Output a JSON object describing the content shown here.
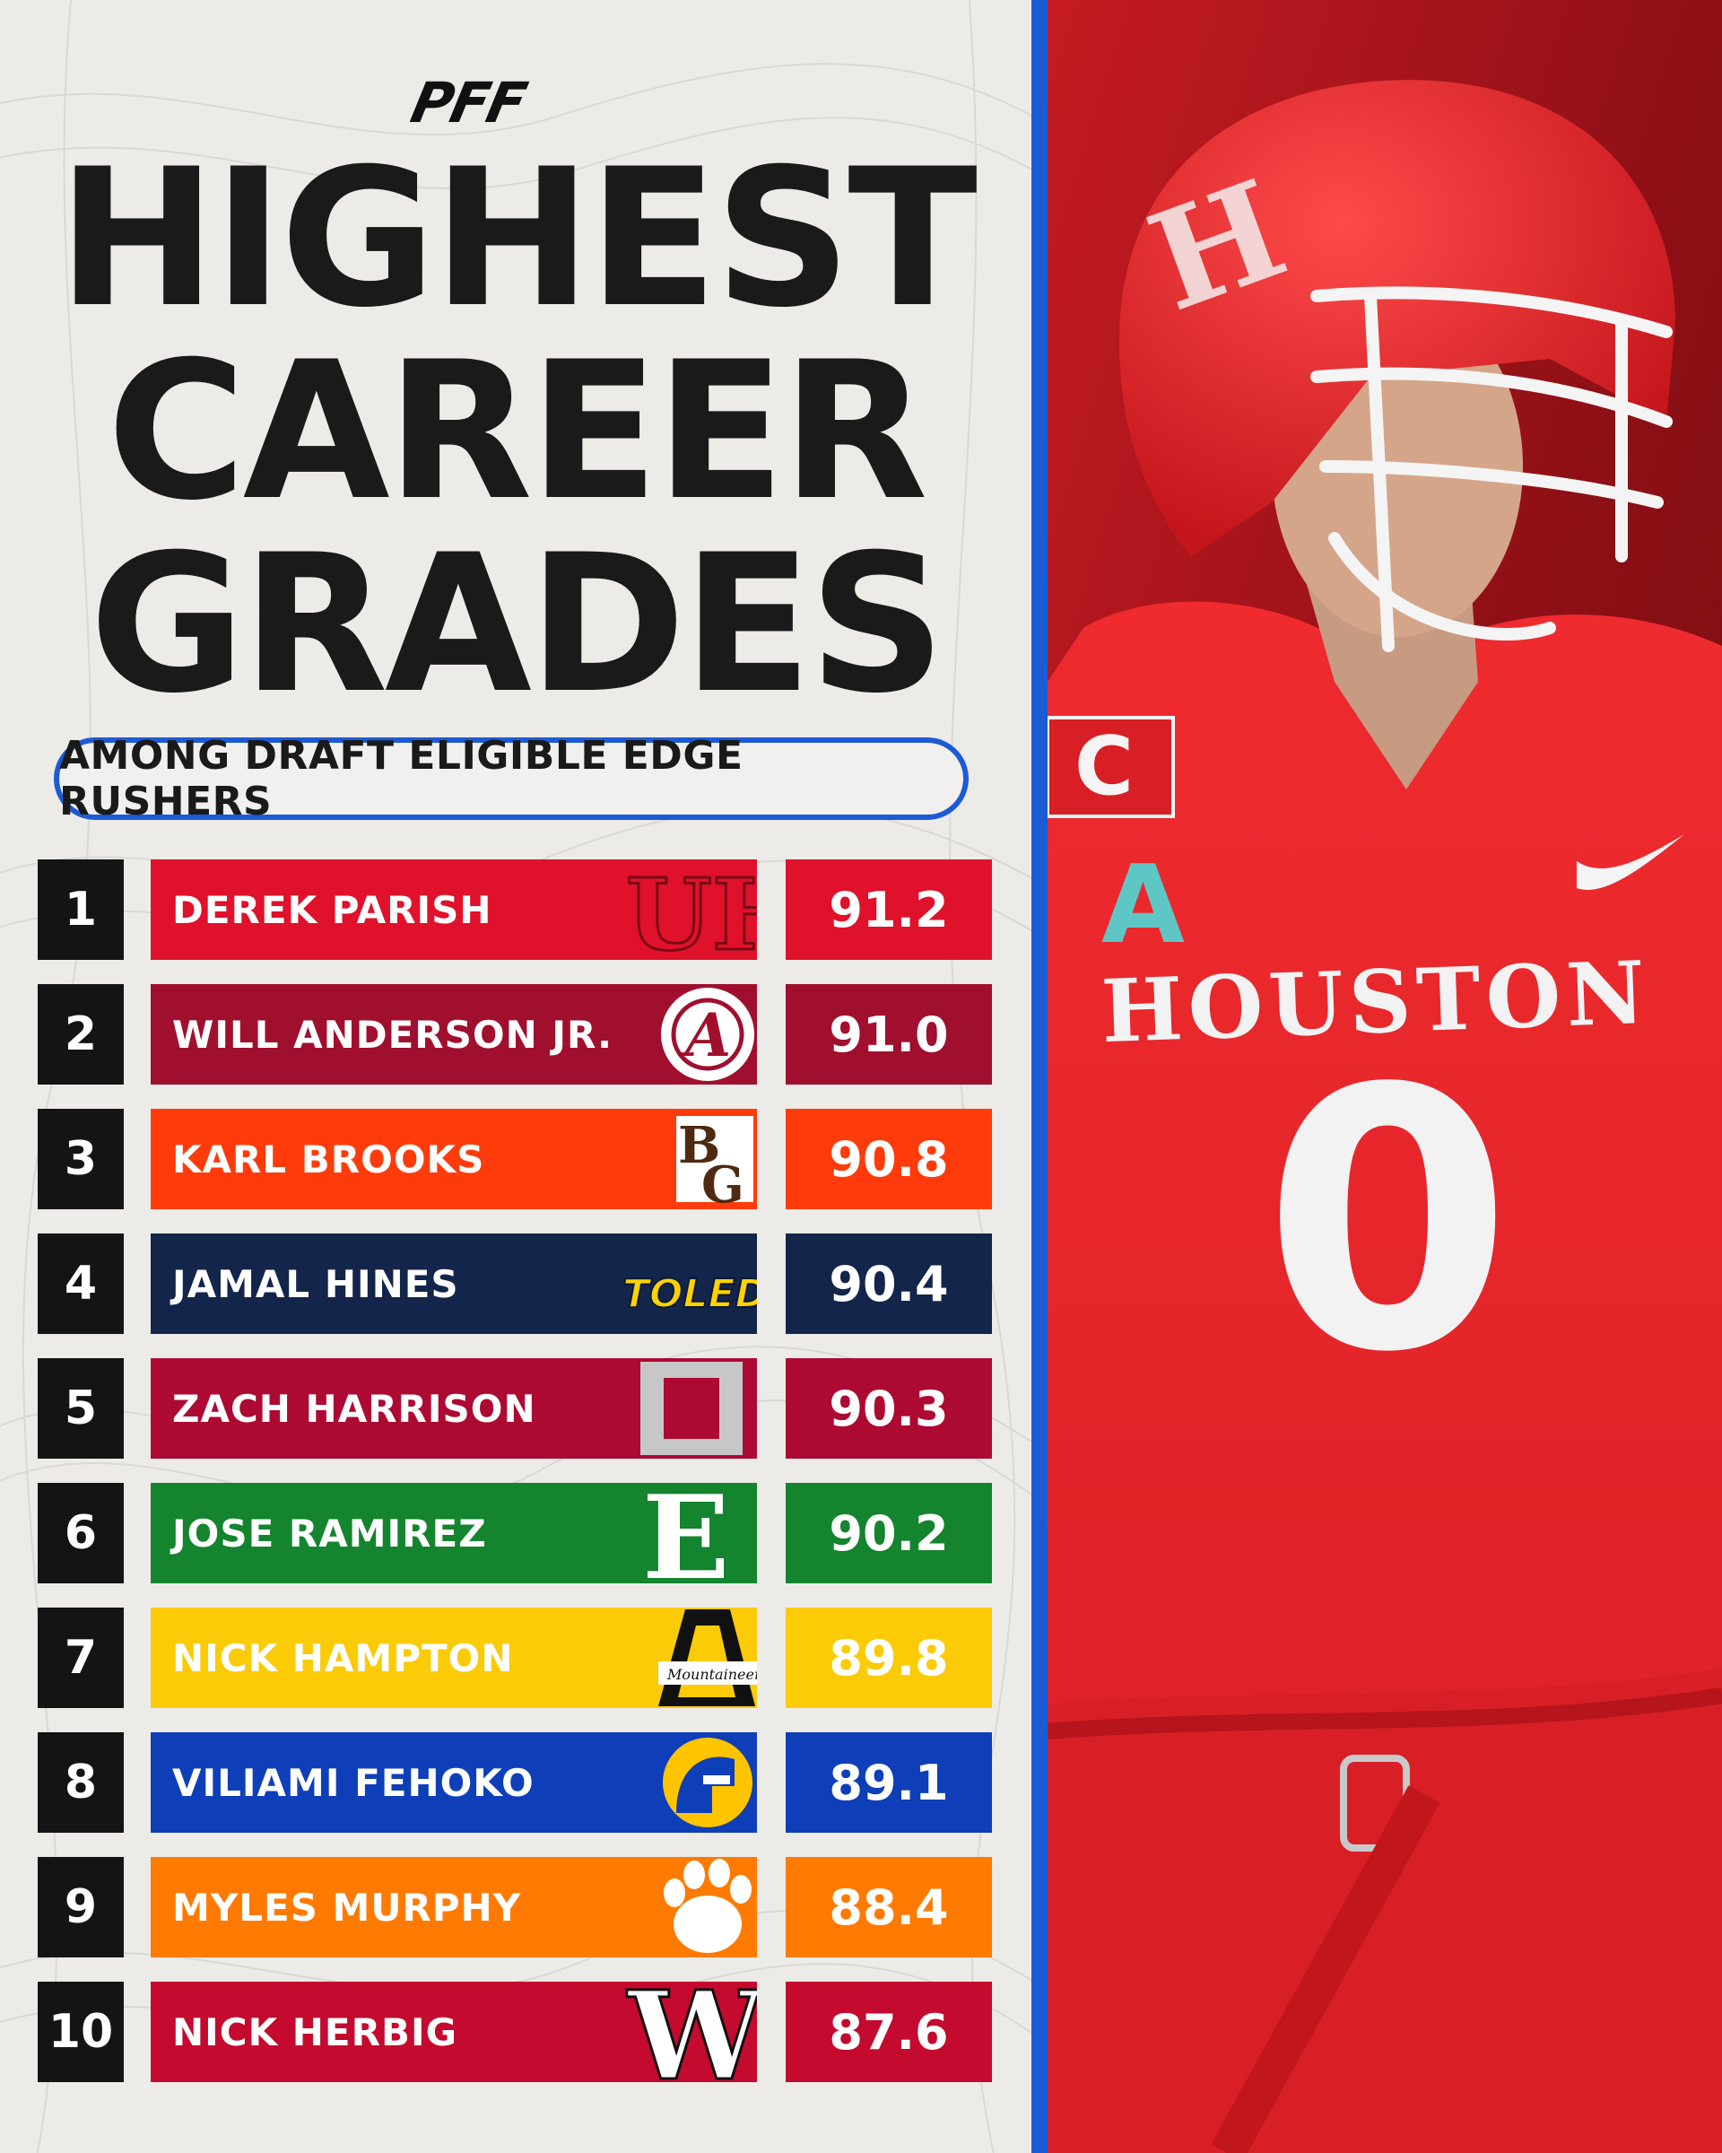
{
  "brand": "PFF",
  "title_lines": [
    "HIGHEST",
    "CAREER",
    "GRADES"
  ],
  "subtitle": "AMONG DRAFT ELIGIBLE EDGE RUSHERS",
  "colors": {
    "divider": "#1d5bd6",
    "rank_bg": "#141414",
    "background": "#ecebe8"
  },
  "rows": [
    {
      "rank": "1",
      "name": "DEREK PARISH",
      "grade": "91.2",
      "color": "#e0112b",
      "school_icon": "houston-uh-logo",
      "school_mark": "UH"
    },
    {
      "rank": "2",
      "name": "WILL ANDERSON JR.",
      "grade": "91.0",
      "color": "#a0102e",
      "school_icon": "alabama-crimson-tide-logo",
      "school_mark": "A"
    },
    {
      "rank": "3",
      "name": "KARL BROOKS",
      "grade": "90.8",
      "color": "#ff3b0b",
      "school_icon": "bowling-green-logo",
      "school_mark": "BG"
    },
    {
      "rank": "4",
      "name": "JAMAL HINES",
      "grade": "90.4",
      "color": "#13254a",
      "school_icon": "toledo-logo",
      "school_mark": "TOLEDO"
    },
    {
      "rank": "5",
      "name": "ZACH HARRISON",
      "grade": "90.3",
      "color": "#ad0a33",
      "school_icon": "ohio-state-logo",
      "school_mark": "O"
    },
    {
      "rank": "6",
      "name": "JOSE RAMIREZ",
      "grade": "90.2",
      "color": "#14842f",
      "school_icon": "eastern-michigan-logo",
      "school_mark": "E"
    },
    {
      "rank": "7",
      "name": "NICK HAMPTON",
      "grade": "89.8",
      "color": "#fbcb08",
      "school_icon": "appalachian-state-logo",
      "school_mark": "A"
    },
    {
      "rank": "8",
      "name": "VILIAMI FEHOKO",
      "grade": "89.1",
      "color": "#0f3fb8",
      "school_icon": "san-jose-state-spartan-logo",
      "school_mark": ""
    },
    {
      "rank": "9",
      "name": "MYLES MURPHY",
      "grade": "88.4",
      "color": "#ff7a00",
      "school_icon": "clemson-paw-logo",
      "school_mark": ""
    },
    {
      "rank": "10",
      "name": "NICK HERBIG",
      "grade": "87.6",
      "color": "#c40a2e",
      "school_icon": "wisconsin-w-logo",
      "school_mark": "W"
    }
  ],
  "photo": {
    "subject": "player-photo",
    "jersey_text": "HOUSTON",
    "jersey_number": "0",
    "captain_patch": "C",
    "helmet_text": "HOUSTON",
    "colors": {
      "uniform": "#e8262b",
      "background": "#8e1016"
    }
  }
}
